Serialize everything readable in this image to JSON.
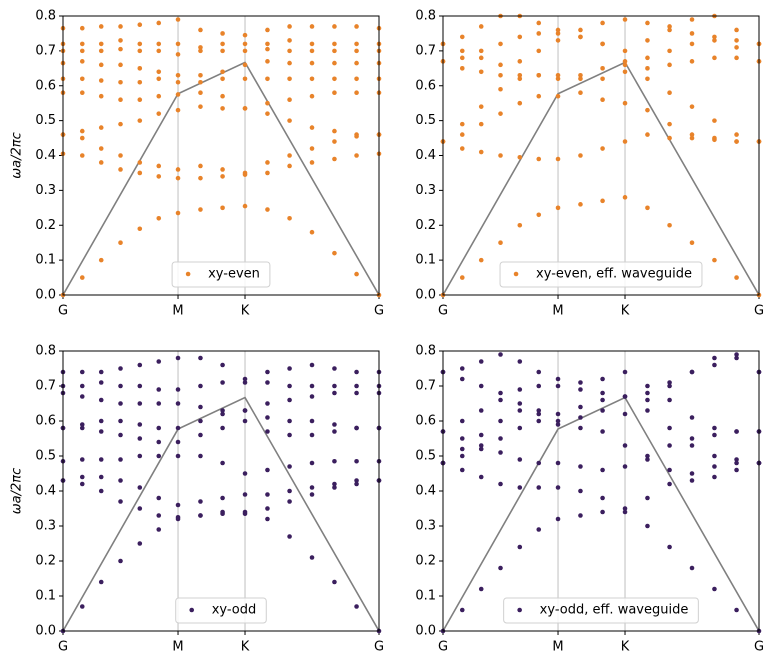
{
  "chart_data": [
    {
      "type": "scatter",
      "ylabel": "ωa/2πc",
      "legend": "lower center",
      "x": [
        0,
        0.061,
        0.121,
        0.182,
        0.243,
        0.303,
        0.364,
        0.435,
        0.505,
        0.576,
        0.647,
        0.717,
        0.788,
        0.859,
        0.929,
        1
      ],
      "xlim": [
        0,
        1
      ],
      "xticks": [
        {
          "value": 0,
          "label": "G"
        },
        {
          "value": 0.364,
          "label": "M"
        },
        {
          "value": 0.576,
          "label": "K"
        },
        {
          "value": 1,
          "label": "G"
        }
      ],
      "ylim": [
        0,
        0.8
      ],
      "yticks": [
        {
          "value": 0,
          "label": "0.0"
        },
        0.1,
        0.2,
        0.3,
        0.4,
        0.5,
        0.6,
        0.7,
        0.8
      ],
      "xgrid": true,
      "series": [
        {
          "name": "xy-even",
          "color": "#e8832a",
          "values": [
            [
              0,
              0.05,
              0.1,
              0.15,
              0.19,
              0.22,
              0.235,
              0.245,
              0.25,
              0.255,
              0.245,
              0.22,
              0.18,
              0.12,
              0.06,
              0
            ],
            [
              0.405,
              0.4,
              0.38,
              0.36,
              0.35,
              0.34,
              0.335,
              0.335,
              0.34,
              0.345,
              0.35,
              0.37,
              0.38,
              0.39,
              0.4,
              0.405
            ],
            [
              0.46,
              0.45,
              0.42,
              0.4,
              0.38,
              0.37,
              0.36,
              0.37,
              0.36,
              0.35,
              0.38,
              0.4,
              0.42,
              0.44,
              0.455,
              0.46
            ],
            [
              0.46,
              0.47,
              0.48,
              0.49,
              0.5,
              0.52,
              0.53,
              0.54,
              0.535,
              0.535,
              0.52,
              0.5,
              0.48,
              0.47,
              0.46,
              0.46
            ],
            [
              0.58,
              0.58,
              0.57,
              0.56,
              0.56,
              0.57,
              0.575,
              0.58,
              0.57,
              0.535,
              0.55,
              0.56,
              0.57,
              0.58,
              0.58,
              0.58
            ],
            [
              0.62,
              0.62,
              0.615,
              0.61,
              0.61,
              0.62,
              0.61,
              0.61,
              0.62,
              0.62,
              0.62,
              0.62,
              0.62,
              0.62,
              0.62,
              0.62
            ],
            [
              0.665,
              0.67,
              0.66,
              0.66,
              0.65,
              0.64,
              0.63,
              0.63,
              0.64,
              0.66,
              0.67,
              0.665,
              0.665,
              0.665,
              0.665,
              0.665
            ],
            [
              0.7,
              0.7,
              0.7,
              0.705,
              0.7,
              0.7,
              0.69,
              0.7,
              0.7,
              0.7,
              0.705,
              0.7,
              0.7,
              0.7,
              0.7,
              0.7
            ],
            [
              0.72,
              0.72,
              0.72,
              0.73,
              0.72,
              0.72,
              0.72,
              0.71,
              0.72,
              0.72,
              0.72,
              0.73,
              0.72,
              0.72,
              0.72,
              0.72
            ],
            [
              0.765,
              0.765,
              0.77,
              0.77,
              0.775,
              0.78,
              0.79,
              0.76,
              0.75,
              0.745,
              0.76,
              0.77,
              0.77,
              0.77,
              0.77,
              0.765
            ]
          ]
        }
      ],
      "light_line": {
        "color": "#808080",
        "x": [
          0,
          0.364,
          0.576,
          1
        ],
        "values": [
          0,
          0.577,
          0.667,
          0
        ]
      }
    },
    {
      "type": "scatter",
      "legend": "lower center",
      "x": [
        0,
        0.061,
        0.121,
        0.182,
        0.243,
        0.303,
        0.364,
        0.435,
        0.505,
        0.576,
        0.647,
        0.717,
        0.788,
        0.859,
        0.929,
        1
      ],
      "xlim": [
        0,
        1
      ],
      "xticks": [
        {
          "value": 0,
          "label": "G"
        },
        {
          "value": 0.364,
          "label": "M"
        },
        {
          "value": 0.576,
          "label": "K"
        },
        {
          "value": 1,
          "label": "G"
        }
      ],
      "ylim": [
        0,
        0.8
      ],
      "yticks": [
        {
          "value": 0,
          "label": "0.0"
        },
        0.1,
        0.2,
        0.3,
        0.4,
        0.5,
        0.6,
        0.7,
        0.8
      ],
      "xgrid": true,
      "series": [
        {
          "name": "xy-even, eff. waveguide",
          "color": "#e8832a",
          "values": [
            [
              0,
              0.05,
              0.1,
              0.15,
              0.2,
              0.23,
              0.25,
              0.26,
              0.27,
              0.28,
              0.25,
              0.2,
              0.15,
              0.1,
              0.05,
              0
            ],
            [
              0.44,
              0.42,
              0.41,
              0.4,
              0.395,
              0.39,
              0.39,
              0.4,
              0.42,
              0.44,
              0.46,
              0.45,
              0.45,
              0.445,
              0.44,
              0.44
            ],
            [
              0.44,
              0.46,
              0.49,
              0.52,
              0.55,
              0.57,
              0.57,
              0.58,
              0.56,
              0.55,
              0.53,
              0.49,
              0.46,
              0.45,
              0.44,
              0.44
            ],
            [
              0.44,
              0.49,
              0.54,
              0.59,
              0.62,
              0.63,
              0.62,
              0.63,
              0.65,
              0.66,
              0.62,
              0.58,
              0.54,
              0.5,
              0.46,
              0.44
            ],
            [
              0.67,
              0.65,
              0.64,
              0.63,
              0.63,
              0.63,
              0.63,
              0.62,
              0.62,
              0.64,
              0.65,
              0.66,
              0.67,
              0.68,
              0.68,
              0.67
            ],
            [
              0.67,
              0.68,
              0.7,
              0.72,
              0.74,
              0.75,
              0.75,
              0.74,
              0.72,
              0.67,
              0.68,
              0.7,
              0.72,
              0.73,
              0.71,
              0.67
            ],
            [
              0.72,
              0.74,
              0.77,
              0.8,
              0.8,
              0.78,
              0.76,
              0.74,
              0.72,
              0.7,
              0.73,
              0.76,
              0.79,
              0.8,
              0.76,
              0.72
            ],
            [
              0.72,
              0.7,
              0.68,
              0.66,
              0.67,
              0.7,
              0.73,
              0.76,
              0.78,
              0.79,
              0.78,
              0.77,
              0.75,
              0.74,
              0.73,
              0.72
            ]
          ]
        }
      ],
      "light_line": {
        "color": "#808080",
        "x": [
          0,
          0.364,
          0.576,
          1
        ],
        "values": [
          0,
          0.577,
          0.667,
          0
        ]
      }
    },
    {
      "type": "scatter",
      "ylabel": "ωa/2πc",
      "legend": "lower center",
      "x": [
        0,
        0.061,
        0.121,
        0.182,
        0.243,
        0.303,
        0.364,
        0.435,
        0.505,
        0.576,
        0.647,
        0.717,
        0.788,
        0.859,
        0.929,
        1
      ],
      "xlim": [
        0,
        1
      ],
      "xticks": [
        {
          "value": 0,
          "label": "G"
        },
        {
          "value": 0.364,
          "label": "M"
        },
        {
          "value": 0.576,
          "label": "K"
        },
        {
          "value": 1,
          "label": "G"
        }
      ],
      "ylim": [
        0,
        0.8
      ],
      "yticks": [
        {
          "value": 0,
          "label": "0.0"
        },
        0.1,
        0.2,
        0.3,
        0.4,
        0.5,
        0.6,
        0.7,
        0.8
      ],
      "xgrid": true,
      "series": [
        {
          "name": "xy-odd",
          "color": "#3b1f5e",
          "values": [
            [
              0,
              0.07,
              0.14,
              0.2,
              0.25,
              0.29,
              0.32,
              0.33,
              0.335,
              0.335,
              0.32,
              0.27,
              0.21,
              0.14,
              0.07,
              0
            ],
            [
              0.43,
              0.42,
              0.4,
              0.37,
              0.35,
              0.33,
              0.325,
              0.33,
              0.34,
              0.34,
              0.35,
              0.37,
              0.39,
              0.41,
              0.42,
              0.43
            ],
            [
              0.43,
              0.44,
              0.44,
              0.43,
              0.41,
              0.38,
              0.36,
              0.37,
              0.38,
              0.39,
              0.39,
              0.4,
              0.41,
              0.42,
              0.43,
              0.43
            ],
            [
              0.485,
              0.49,
              0.49,
              0.49,
              0.5,
              0.5,
              0.5,
              0.5,
              0.48,
              0.45,
              0.46,
              0.47,
              0.48,
              0.485,
              0.485,
              0.485
            ],
            [
              0.58,
              0.58,
              0.57,
              0.56,
              0.55,
              0.54,
              0.54,
              0.56,
              0.58,
              0.6,
              0.57,
              0.56,
              0.56,
              0.57,
              0.58,
              0.58
            ],
            [
              0.58,
              0.59,
              0.6,
              0.6,
              0.59,
              0.58,
              0.58,
              0.6,
              0.62,
              0.63,
              0.61,
              0.6,
              0.6,
              0.59,
              0.58,
              0.58
            ],
            [
              0.68,
              0.67,
              0.66,
              0.65,
              0.65,
              0.65,
              0.65,
              0.64,
              0.63,
              0.63,
              0.65,
              0.66,
              0.67,
              0.68,
              0.68,
              0.68
            ],
            [
              0.7,
              0.7,
              0.71,
              0.7,
              0.7,
              0.69,
              0.69,
              0.7,
              0.71,
              0.71,
              0.71,
              0.7,
              0.7,
              0.7,
              0.7,
              0.7
            ],
            [
              0.74,
              0.74,
              0.74,
              0.75,
              0.76,
              0.77,
              0.78,
              0.78,
              0.76,
              0.72,
              0.74,
              0.75,
              0.76,
              0.75,
              0.74,
              0.74
            ]
          ]
        }
      ],
      "light_line": {
        "color": "#808080",
        "x": [
          0,
          0.364,
          0.576,
          1
        ],
        "values": [
          0,
          0.577,
          0.667,
          0
        ]
      }
    },
    {
      "type": "scatter",
      "legend": "lower center",
      "x": [
        0,
        0.061,
        0.121,
        0.182,
        0.243,
        0.303,
        0.364,
        0.435,
        0.505,
        0.576,
        0.647,
        0.717,
        0.788,
        0.859,
        0.929,
        1
      ],
      "xlim": [
        0,
        1
      ],
      "xticks": [
        {
          "value": 0,
          "label": "G"
        },
        {
          "value": 0.364,
          "label": "M"
        },
        {
          "value": 0.576,
          "label": "K"
        },
        {
          "value": 1,
          "label": "G"
        }
      ],
      "ylim": [
        0,
        0.8
      ],
      "yticks": [
        {
          "value": 0,
          "label": "0.0"
        },
        0.1,
        0.2,
        0.3,
        0.4,
        0.5,
        0.6,
        0.7,
        0.8
      ],
      "xgrid": true,
      "series": [
        {
          "name": "xy-odd, eff. waveguide",
          "color": "#3b1f5e",
          "values": [
            [
              0,
              0.06,
              0.12,
              0.18,
              0.24,
              0.29,
              0.32,
              0.33,
              0.34,
              0.34,
              0.3,
              0.24,
              0.18,
              0.12,
              0.06,
              0
            ],
            [
              0.48,
              0.46,
              0.44,
              0.42,
              0.41,
              0.41,
              0.41,
              0.4,
              0.38,
              0.35,
              0.38,
              0.42,
              0.45,
              0.47,
              0.48,
              0.48
            ],
            [
              0.48,
              0.5,
              0.52,
              0.55,
              0.58,
              0.6,
              0.6,
              0.58,
              0.57,
              0.53,
              0.49,
              0.46,
              0.43,
              0.44,
              0.46,
              0.48
            ],
            [
              0.48,
              0.52,
              0.56,
              0.6,
              0.63,
              0.63,
              0.62,
              0.64,
              0.66,
              0.67,
              0.63,
              0.58,
              0.53,
              0.5,
              0.49,
              0.48
            ],
            [
              0.57,
              0.55,
              0.53,
              0.51,
              0.49,
              0.48,
              0.48,
              0.47,
              0.46,
              0.47,
              0.5,
              0.53,
              0.55,
              0.56,
              0.57,
              0.57
            ],
            [
              0.57,
              0.6,
              0.63,
              0.66,
              0.69,
              0.7,
              0.7,
              0.71,
              0.72,
              0.74,
              0.7,
              0.66,
              0.61,
              0.58,
              0.57,
              0.57
            ],
            [
              0.74,
              0.75,
              0.77,
              0.79,
              0.77,
              0.74,
              0.72,
              0.69,
              0.68,
              0.67,
              0.68,
              0.71,
              0.74,
              0.76,
              0.78,
              0.74
            ],
            [
              0.74,
              0.72,
              0.7,
              0.68,
              0.65,
              0.62,
              0.59,
              0.61,
              0.63,
              0.62,
              0.66,
              0.7,
              0.74,
              0.78,
              0.79,
              0.74
            ]
          ]
        }
      ],
      "light_line": {
        "color": "#808080",
        "x": [
          0,
          0.364,
          0.576,
          1
        ],
        "values": [
          0,
          0.577,
          0.667,
          0
        ]
      }
    }
  ]
}
